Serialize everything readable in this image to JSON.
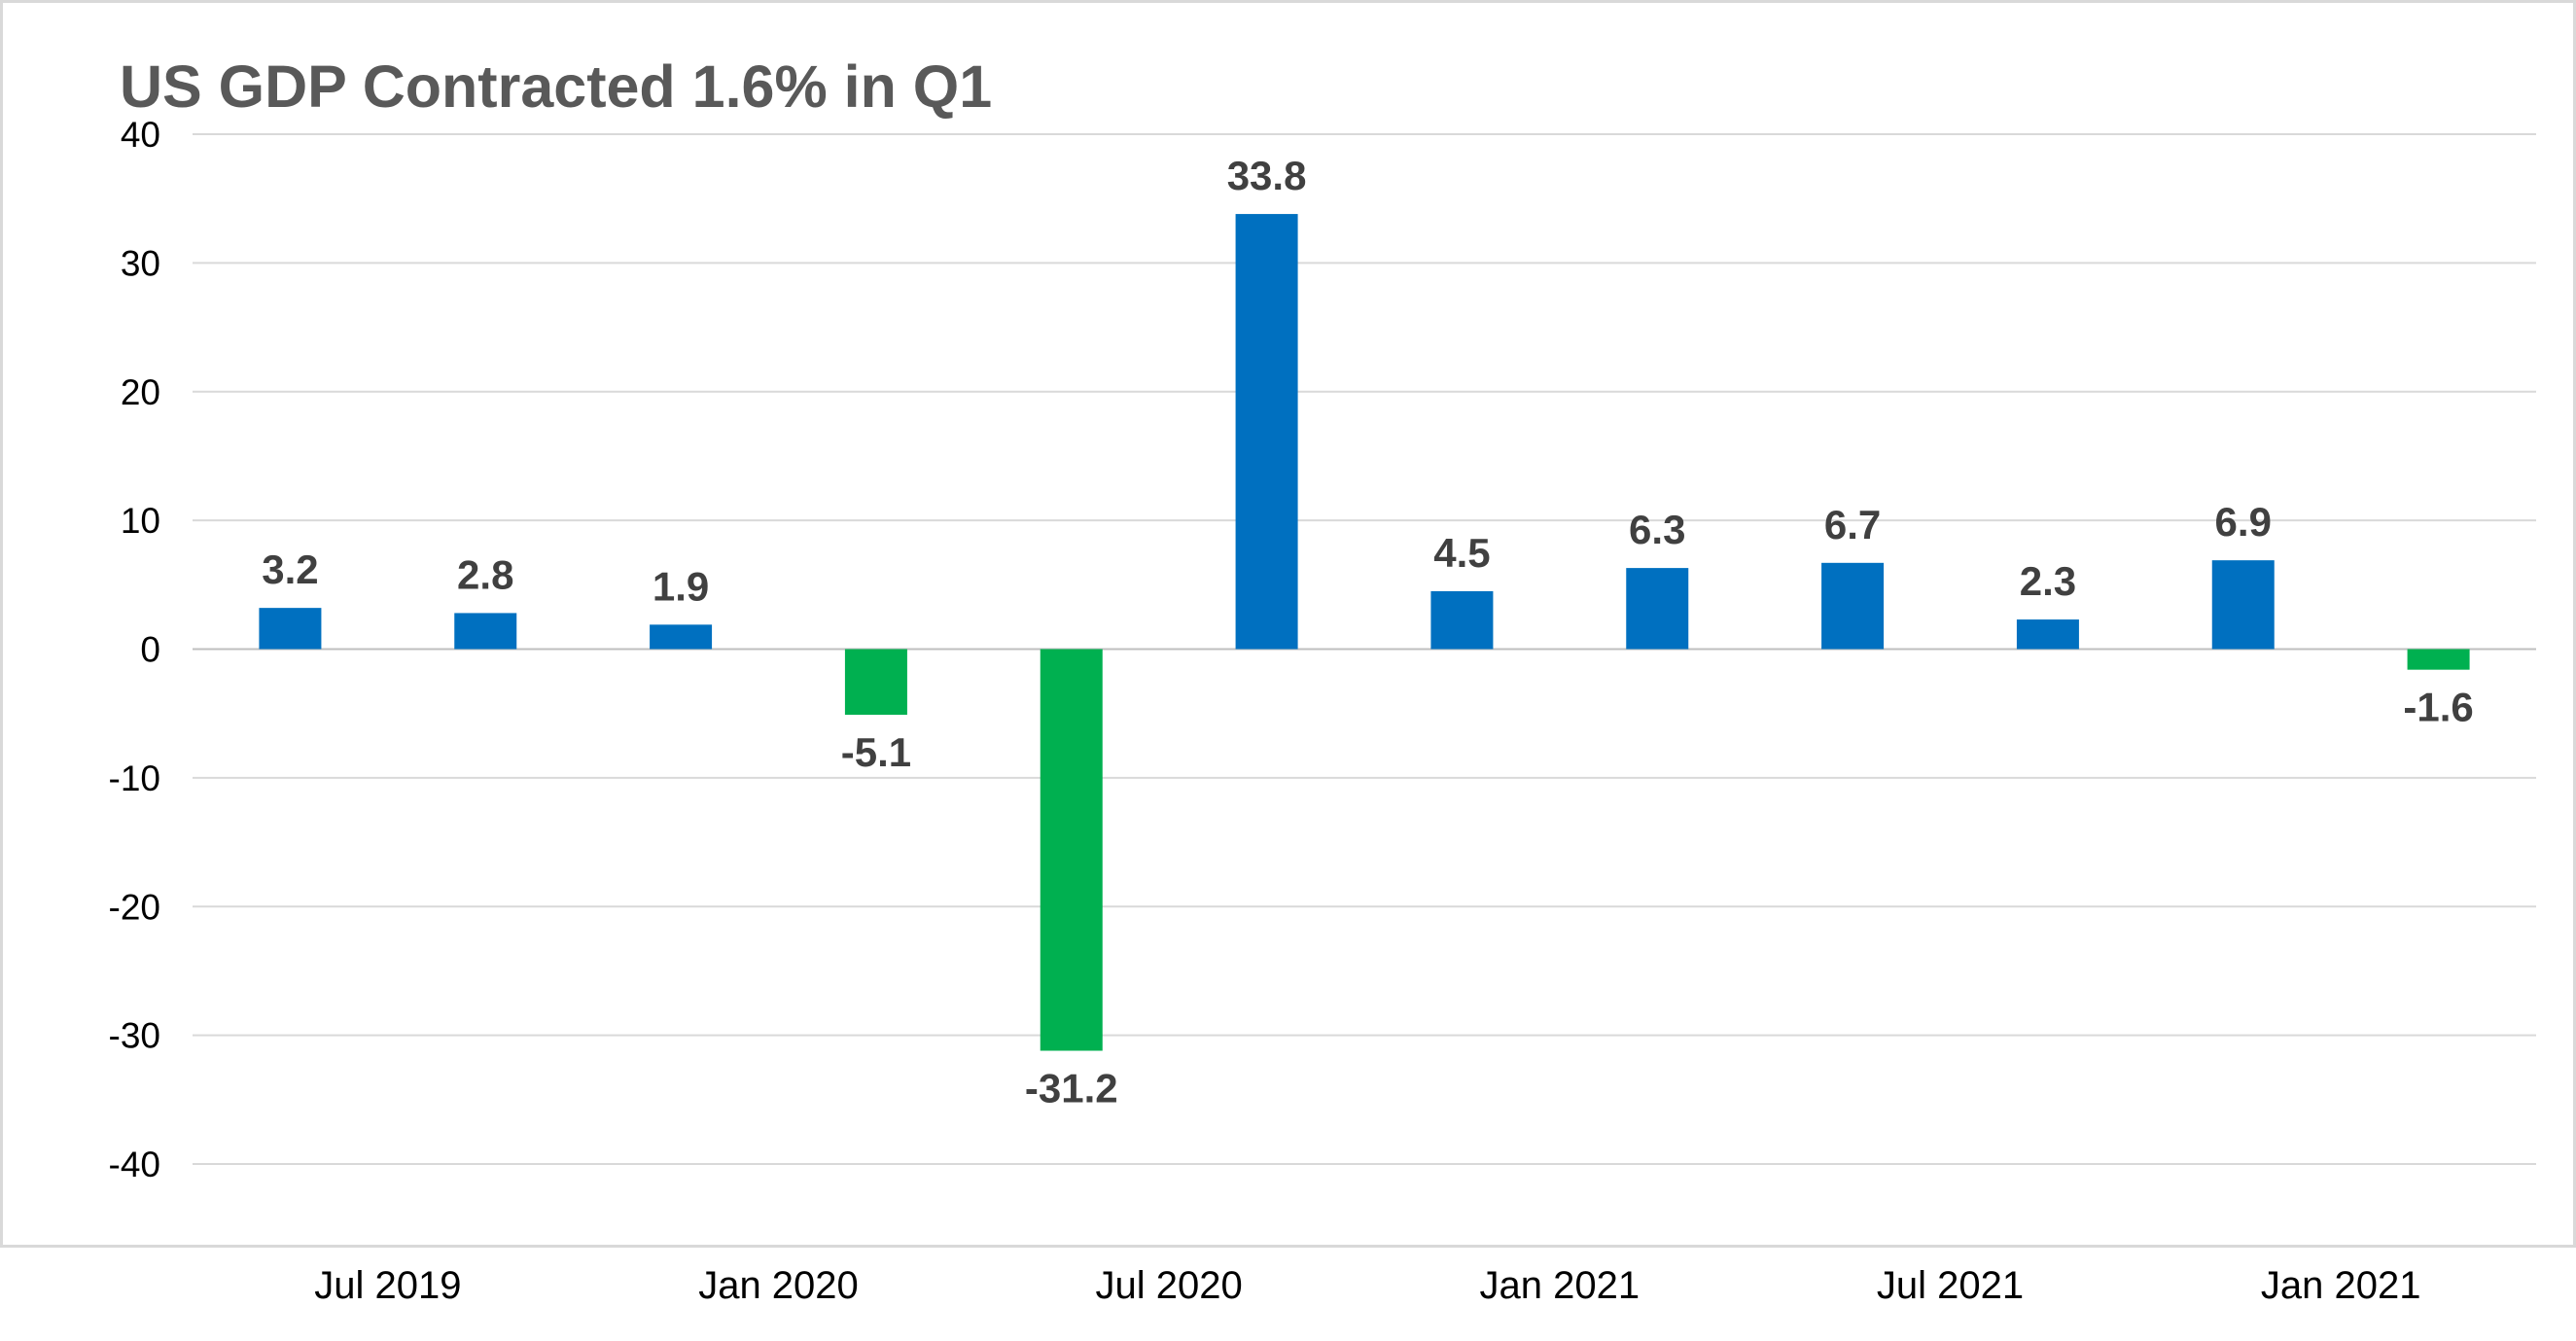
{
  "chart_data": {
    "type": "bar",
    "title": "US GDP Contracted 1.6% in Q1",
    "xlabel": "",
    "ylabel": "",
    "ylim": [
      -40,
      40
    ],
    "yticks": [
      40,
      30,
      20,
      10,
      0,
      -10,
      -20,
      -30,
      -40
    ],
    "grid": true,
    "legend": "none",
    "values": [
      3.2,
      2.8,
      1.9,
      -5.1,
      -31.2,
      33.8,
      4.5,
      6.3,
      6.7,
      2.3,
      6.9,
      -1.6
    ],
    "data_labels": [
      "3.2",
      "2.8",
      "1.9",
      "-5.1",
      "-31.2",
      "33.8",
      "4.5",
      "6.3",
      "6.7",
      "2.3",
      "6.9",
      "-1.6"
    ],
    "x_tick_labels": [
      {
        "label": "Jul 2019",
        "bar_index": 0.5
      },
      {
        "label": "Jan 2020",
        "bar_index": 2.5
      },
      {
        "label": "Jul 2020",
        "bar_index": 4.5
      },
      {
        "label": "Jan 2021",
        "bar_index": 6.5
      },
      {
        "label": "Jul 2021",
        "bar_index": 8.5
      },
      {
        "label": "Jan 2021",
        "bar_index": 10.5
      }
    ],
    "colors": {
      "positive": "#0070c0",
      "negative": "#00b050",
      "grid": "#d9d9d9",
      "border": "#d9d9d9"
    }
  }
}
